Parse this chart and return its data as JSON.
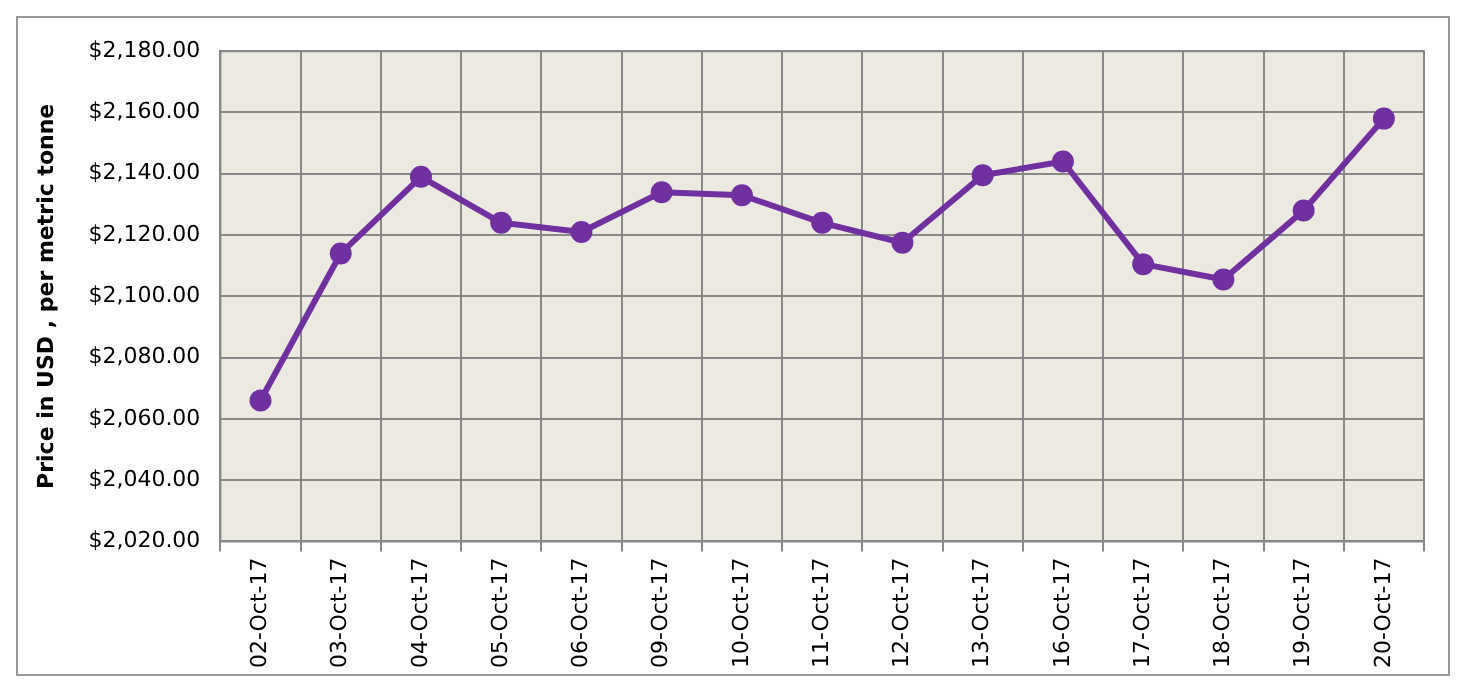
{
  "chart_data": {
    "type": "line",
    "ylabel": "Price in USD , per metric tonne",
    "categories": [
      "02-Oct-17",
      "03-Oct-17",
      "04-Oct-17",
      "05-Oct-17",
      "06-Oct-17",
      "09-Oct-17",
      "10-Oct-17",
      "11-Oct-17",
      "12-Oct-17",
      "13-Oct-17",
      "16-Oct-17",
      "17-Oct-17",
      "18-Oct-17",
      "19-Oct-17",
      "20-Oct-17"
    ],
    "series": [
      {
        "color": "#7030a0",
        "values": [
          2066,
          2114,
          2139,
          2124,
          2121,
          2134,
          2133,
          2124,
          2117.5,
          2139.5,
          2144,
          2110.5,
          2105.5,
          2128,
          2158
        ]
      }
    ],
    "ylim": [
      2020,
      2180
    ],
    "yticks": [
      {
        "value": 2020,
        "label": "$2,020.00"
      },
      {
        "value": 2040,
        "label": "$2,040.00"
      },
      {
        "value": 2060,
        "label": "$2,060.00"
      },
      {
        "value": 2080,
        "label": "$2,080.00"
      },
      {
        "value": 2100,
        "label": "$2,100.00"
      },
      {
        "value": 2120,
        "label": "$2,120.00"
      },
      {
        "value": 2140,
        "label": "$2,140.00"
      },
      {
        "value": 2160,
        "label": "$2,160.00"
      },
      {
        "value": 2180,
        "label": "$2,180.00"
      }
    ],
    "grid": true,
    "legend": false,
    "marker": "circle",
    "line_style": "solid"
  }
}
